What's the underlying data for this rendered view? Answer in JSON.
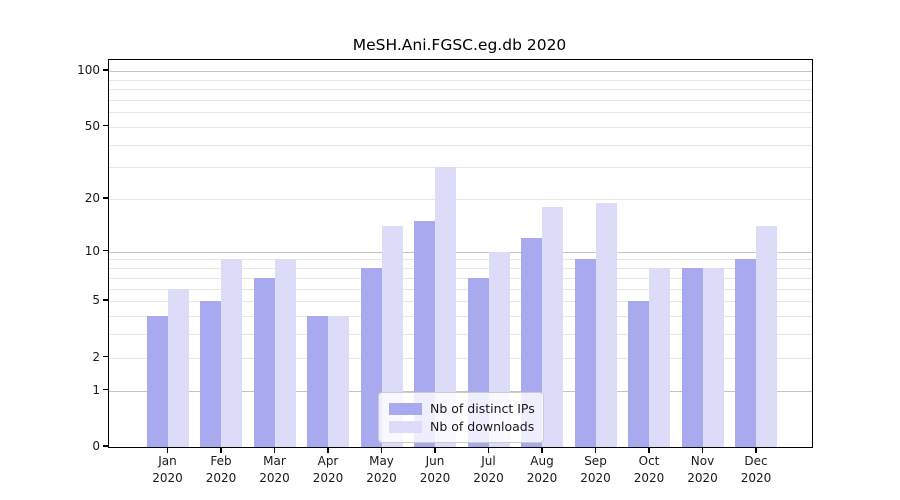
{
  "chart_data": {
    "type": "bar",
    "title": "MeSH.Ani.FGSC.eg.db 2020",
    "x_tick_year": "2020",
    "categories": [
      "Jan",
      "Feb",
      "Mar",
      "Apr",
      "May",
      "Jun",
      "Jul",
      "Aug",
      "Sep",
      "Oct",
      "Nov",
      "Dec"
    ],
    "series": [
      {
        "name": "Nb of distinct IPs",
        "color": "#a9a9f0",
        "values": [
          4,
          5,
          7,
          4,
          8,
          15,
          7,
          12,
          9,
          5,
          8,
          9
        ]
      },
      {
        "name": "Nb of downloads",
        "color": "#dcdcf8",
        "values": [
          6,
          9,
          9,
          4,
          14,
          30,
          10,
          18,
          19,
          8,
          8,
          14
        ]
      }
    ],
    "y_scale": "log1p",
    "ylim": [
      0,
      115
    ],
    "y_ticks": [
      0,
      1,
      2,
      5,
      10,
      20,
      50,
      100
    ],
    "y_gridlines_major": [
      1,
      10,
      100
    ],
    "y_gridlines_minor": [
      2,
      3,
      4,
      5,
      6,
      7,
      8,
      9,
      20,
      30,
      40,
      50,
      60,
      70,
      80,
      90
    ],
    "legend_position": "lower center",
    "grid": "on"
  },
  "colors": {
    "axis": "#000000",
    "grid_minor": "#e7e7e7",
    "grid_major": "#c3c3c3",
    "legend_border": "#cccccc"
  }
}
